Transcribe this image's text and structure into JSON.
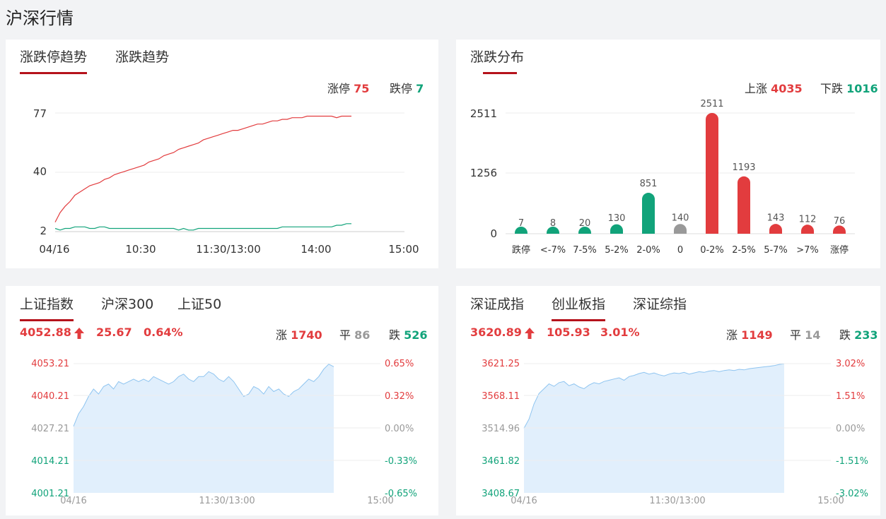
{
  "page_title": "沪深行情",
  "limit_panel": {
    "tabs": [
      "涨跌停趋势",
      "涨跌趋势"
    ],
    "up_label": "涨停",
    "up_value": "75",
    "down_label": "跌停",
    "down_value": "7",
    "chart_data": {
      "type": "line",
      "y_ticks": [
        "77",
        "40",
        "2"
      ],
      "x_ticks": [
        "04/16",
        "10:30",
        "11:30/13:00",
        "14:00",
        "15:00"
      ],
      "ylim": [
        2,
        77
      ],
      "series": [
        {
          "color": "#e23c3e",
          "values": [
            8,
            14,
            18,
            21,
            25,
            27,
            29,
            31,
            32,
            33,
            35,
            36,
            38,
            39,
            40,
            41,
            42,
            43,
            44,
            46,
            47,
            48,
            50,
            51,
            52,
            54,
            55,
            56,
            57,
            58,
            60,
            61,
            62,
            63,
            64,
            65,
            66,
            66,
            67,
            68,
            69,
            70,
            70,
            71,
            72,
            72,
            73,
            73,
            74,
            74,
            74,
            75,
            75,
            75,
            75,
            75,
            75,
            74,
            75,
            75,
            75
          ]
        },
        {
          "color": "#11a37a",
          "values": [
            4,
            3,
            4,
            4,
            5,
            5,
            5,
            4,
            4,
            5,
            5,
            4,
            4,
            4,
            4,
            4,
            4,
            4,
            4,
            4,
            4,
            4,
            4,
            4,
            4,
            3,
            4,
            3,
            3,
            4,
            4,
            4,
            4,
            4,
            4,
            4,
            4,
            4,
            4,
            4,
            4,
            4,
            4,
            4,
            4,
            4,
            5,
            5,
            5,
            5,
            5,
            5,
            5,
            5,
            5,
            5,
            5,
            6,
            6,
            7,
            7
          ]
        }
      ]
    }
  },
  "dist_panel": {
    "tab": "涨跌分布",
    "up_label": "上涨",
    "up_value": "4035",
    "down_label": "下跌",
    "down_value": "1016",
    "chart_data": {
      "type": "bar",
      "y_ticks": [
        "2511",
        "1256",
        "0"
      ],
      "ylim": [
        0,
        2511
      ],
      "categories": [
        "跌停",
        "<-7%",
        "7-5%",
        "5-2%",
        "2-0%",
        "0",
        "0-2%",
        "2-5%",
        "5-7%",
        ">7%",
        "涨停"
      ],
      "values": [
        7,
        8,
        20,
        130,
        851,
        140,
        2511,
        1193,
        143,
        112,
        76
      ],
      "value_labels": [
        "7",
        "8",
        "20",
        "130",
        "851",
        "140",
        "2511",
        "1193",
        "143",
        "112",
        "76"
      ],
      "colors": [
        "#11a37a",
        "#11a37a",
        "#11a37a",
        "#11a37a",
        "#11a37a",
        "#999999",
        "#e23c3e",
        "#e23c3e",
        "#e23c3e",
        "#e23c3e",
        "#e23c3e"
      ]
    }
  },
  "sh_panel": {
    "tabs": [
      "上证指数",
      "沪深300",
      "上证50"
    ],
    "price": "4052.88",
    "change": "25.67",
    "pct": "0.64%",
    "up_label": "涨",
    "up_value": "1740",
    "flat_label": "平",
    "flat_value": "86",
    "down_label": "跌",
    "down_value": "526",
    "chart_data": {
      "type": "area",
      "y_ticks_left": [
        "4053.21",
        "4040.21",
        "4027.21",
        "4014.21",
        "4001.21"
      ],
      "y_ticks_right": [
        "0.65%",
        "0.32%",
        "0.00%",
        "-0.33%",
        "-0.65%"
      ],
      "x_ticks": [
        "04/16",
        "11:30/13:00",
        "15:00"
      ],
      "ylim": [
        4001.21,
        4053.21
      ],
      "series": [
        {
          "values": [
            4028,
            4033,
            4036,
            4040,
            4043,
            4041,
            4044,
            4045,
            4043,
            4046,
            4045,
            4046,
            4047,
            4046,
            4047,
            4046,
            4048,
            4047,
            4046,
            4045,
            4046,
            4048,
            4049,
            4047,
            4046,
            4048,
            4048,
            4050,
            4049,
            4047,
            4046,
            4048,
            4046,
            4043,
            4040,
            4041,
            4044,
            4043,
            4041,
            4044,
            4042,
            4043,
            4041,
            4040,
            4042,
            4043,
            4045,
            4047,
            4046,
            4048,
            4051,
            4053,
            4052
          ]
        }
      ]
    }
  },
  "sz_panel": {
    "tabs": [
      "深证成指",
      "创业板指",
      "深证综指"
    ],
    "price": "3620.89",
    "change": "105.93",
    "pct": "3.01%",
    "up_label": "涨",
    "up_value": "1149",
    "flat_label": "平",
    "flat_value": "14",
    "down_label": "跌",
    "down_value": "233",
    "chart_data": {
      "type": "area",
      "y_ticks_left": [
        "3621.25",
        "3568.11",
        "3514.96",
        "3461.82",
        "3408.67"
      ],
      "y_ticks_right": [
        "3.02%",
        "1.51%",
        "0.00%",
        "-1.51%",
        "-3.02%"
      ],
      "x_ticks": [
        "04/16",
        "11:30/13:00",
        "15:00"
      ],
      "ylim": [
        3408.67,
        3621.25
      ],
      "series": [
        {
          "values": [
            3515,
            3530,
            3555,
            3572,
            3580,
            3588,
            3584,
            3590,
            3592,
            3585,
            3588,
            3583,
            3580,
            3586,
            3590,
            3588,
            3592,
            3594,
            3596,
            3598,
            3594,
            3600,
            3602,
            3605,
            3607,
            3604,
            3606,
            3603,
            3601,
            3604,
            3606,
            3605,
            3607,
            3604,
            3606,
            3608,
            3607,
            3609,
            3610,
            3608,
            3610,
            3611,
            3610,
            3612,
            3611,
            3613,
            3614,
            3615,
            3616,
            3617,
            3618,
            3620,
            3621
          ]
        }
      ]
    }
  }
}
